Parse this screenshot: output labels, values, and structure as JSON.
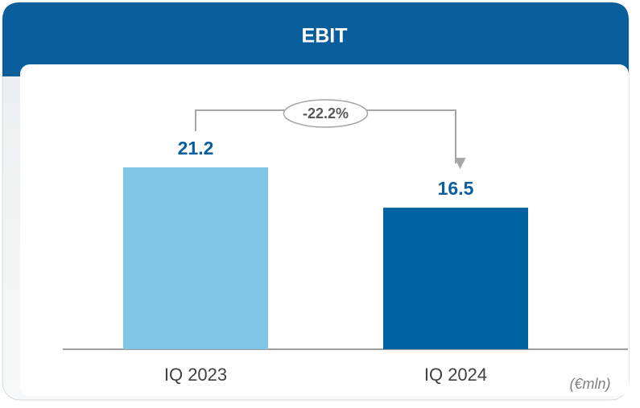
{
  "chart_data": {
    "type": "bar",
    "title": "EBIT",
    "categories": [
      "IQ 2023",
      "IQ 2024"
    ],
    "values": [
      21.2,
      16.5
    ],
    "colors": [
      "#7fc6e6",
      "#0063a1"
    ],
    "annotation": "-22.2%",
    "unit": "(€mln)"
  }
}
